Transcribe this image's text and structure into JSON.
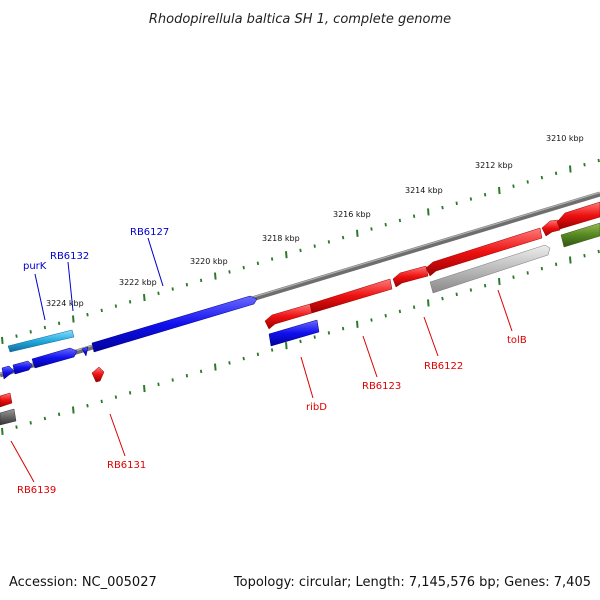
{
  "title": "Rhodopirellula baltica SH 1, complete genome",
  "footer": {
    "accession": "Accession: NC_005027",
    "summary": "Topology: circular; Length: 7,145,576 bp; Genes: 7,405"
  },
  "colors": {
    "forward_gene": "#1010ee",
    "reverse_gene": "#ee1010",
    "highlight_gene": "#22aadd",
    "pseudo_gene": "#bbbbbb",
    "rna_gene": "#558822",
    "backbone": "#808080",
    "tick_mark": "#2a7a2a"
  },
  "scale": {
    "unit": "kbp",
    "labels": [
      "3210 kbp",
      "3212 kbp",
      "3214 kbp",
      "3216 kbp",
      "3218 kbp",
      "3220 kbp",
      "3222 kbp",
      "3224 kbp"
    ]
  },
  "genes": {
    "forward": [
      "purK",
      "RB6132",
      "RB6127"
    ],
    "reverse": [
      "RB6139",
      "RB6131",
      "ribD",
      "RB6123",
      "RB6122",
      "tolB"
    ]
  }
}
